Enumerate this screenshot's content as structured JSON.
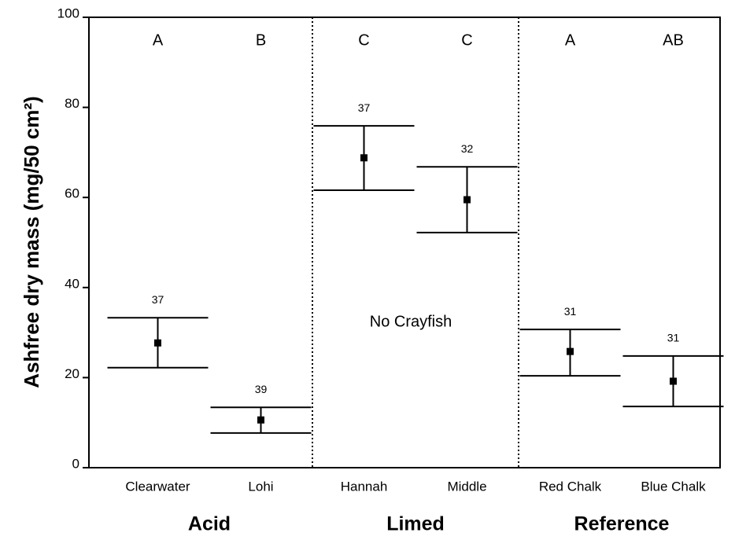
{
  "chart_data": {
    "type": "errorbar",
    "y_label": "Ashfree dry mass (mg/50 cm²)",
    "categories": [
      "Clearwater",
      "Lohi",
      "Hannah",
      "Middle",
      "Red Chalk",
      "Blue Chalk"
    ],
    "values": [
      27.7,
      10.6,
      68.8,
      59.5,
      25.8,
      19.2
    ],
    "lower": [
      22.2,
      7.7,
      61.6,
      52.2,
      20.4,
      13.6
    ],
    "upper": [
      33.3,
      13.4,
      75.9,
      66.8,
      30.7,
      24.8
    ],
    "sample_sizes": [
      37,
      39,
      37,
      32,
      31,
      31
    ],
    "group_letters": [
      "A",
      "B",
      "C",
      "C",
      "A",
      "AB"
    ],
    "groups": [
      "Acid",
      "Limed",
      "Reference"
    ],
    "annotation": "No Crayfish",
    "color": "#000000",
    "ylim": [
      0,
      100
    ],
    "yticks": [
      0,
      20,
      40,
      60,
      80,
      100
    ]
  }
}
